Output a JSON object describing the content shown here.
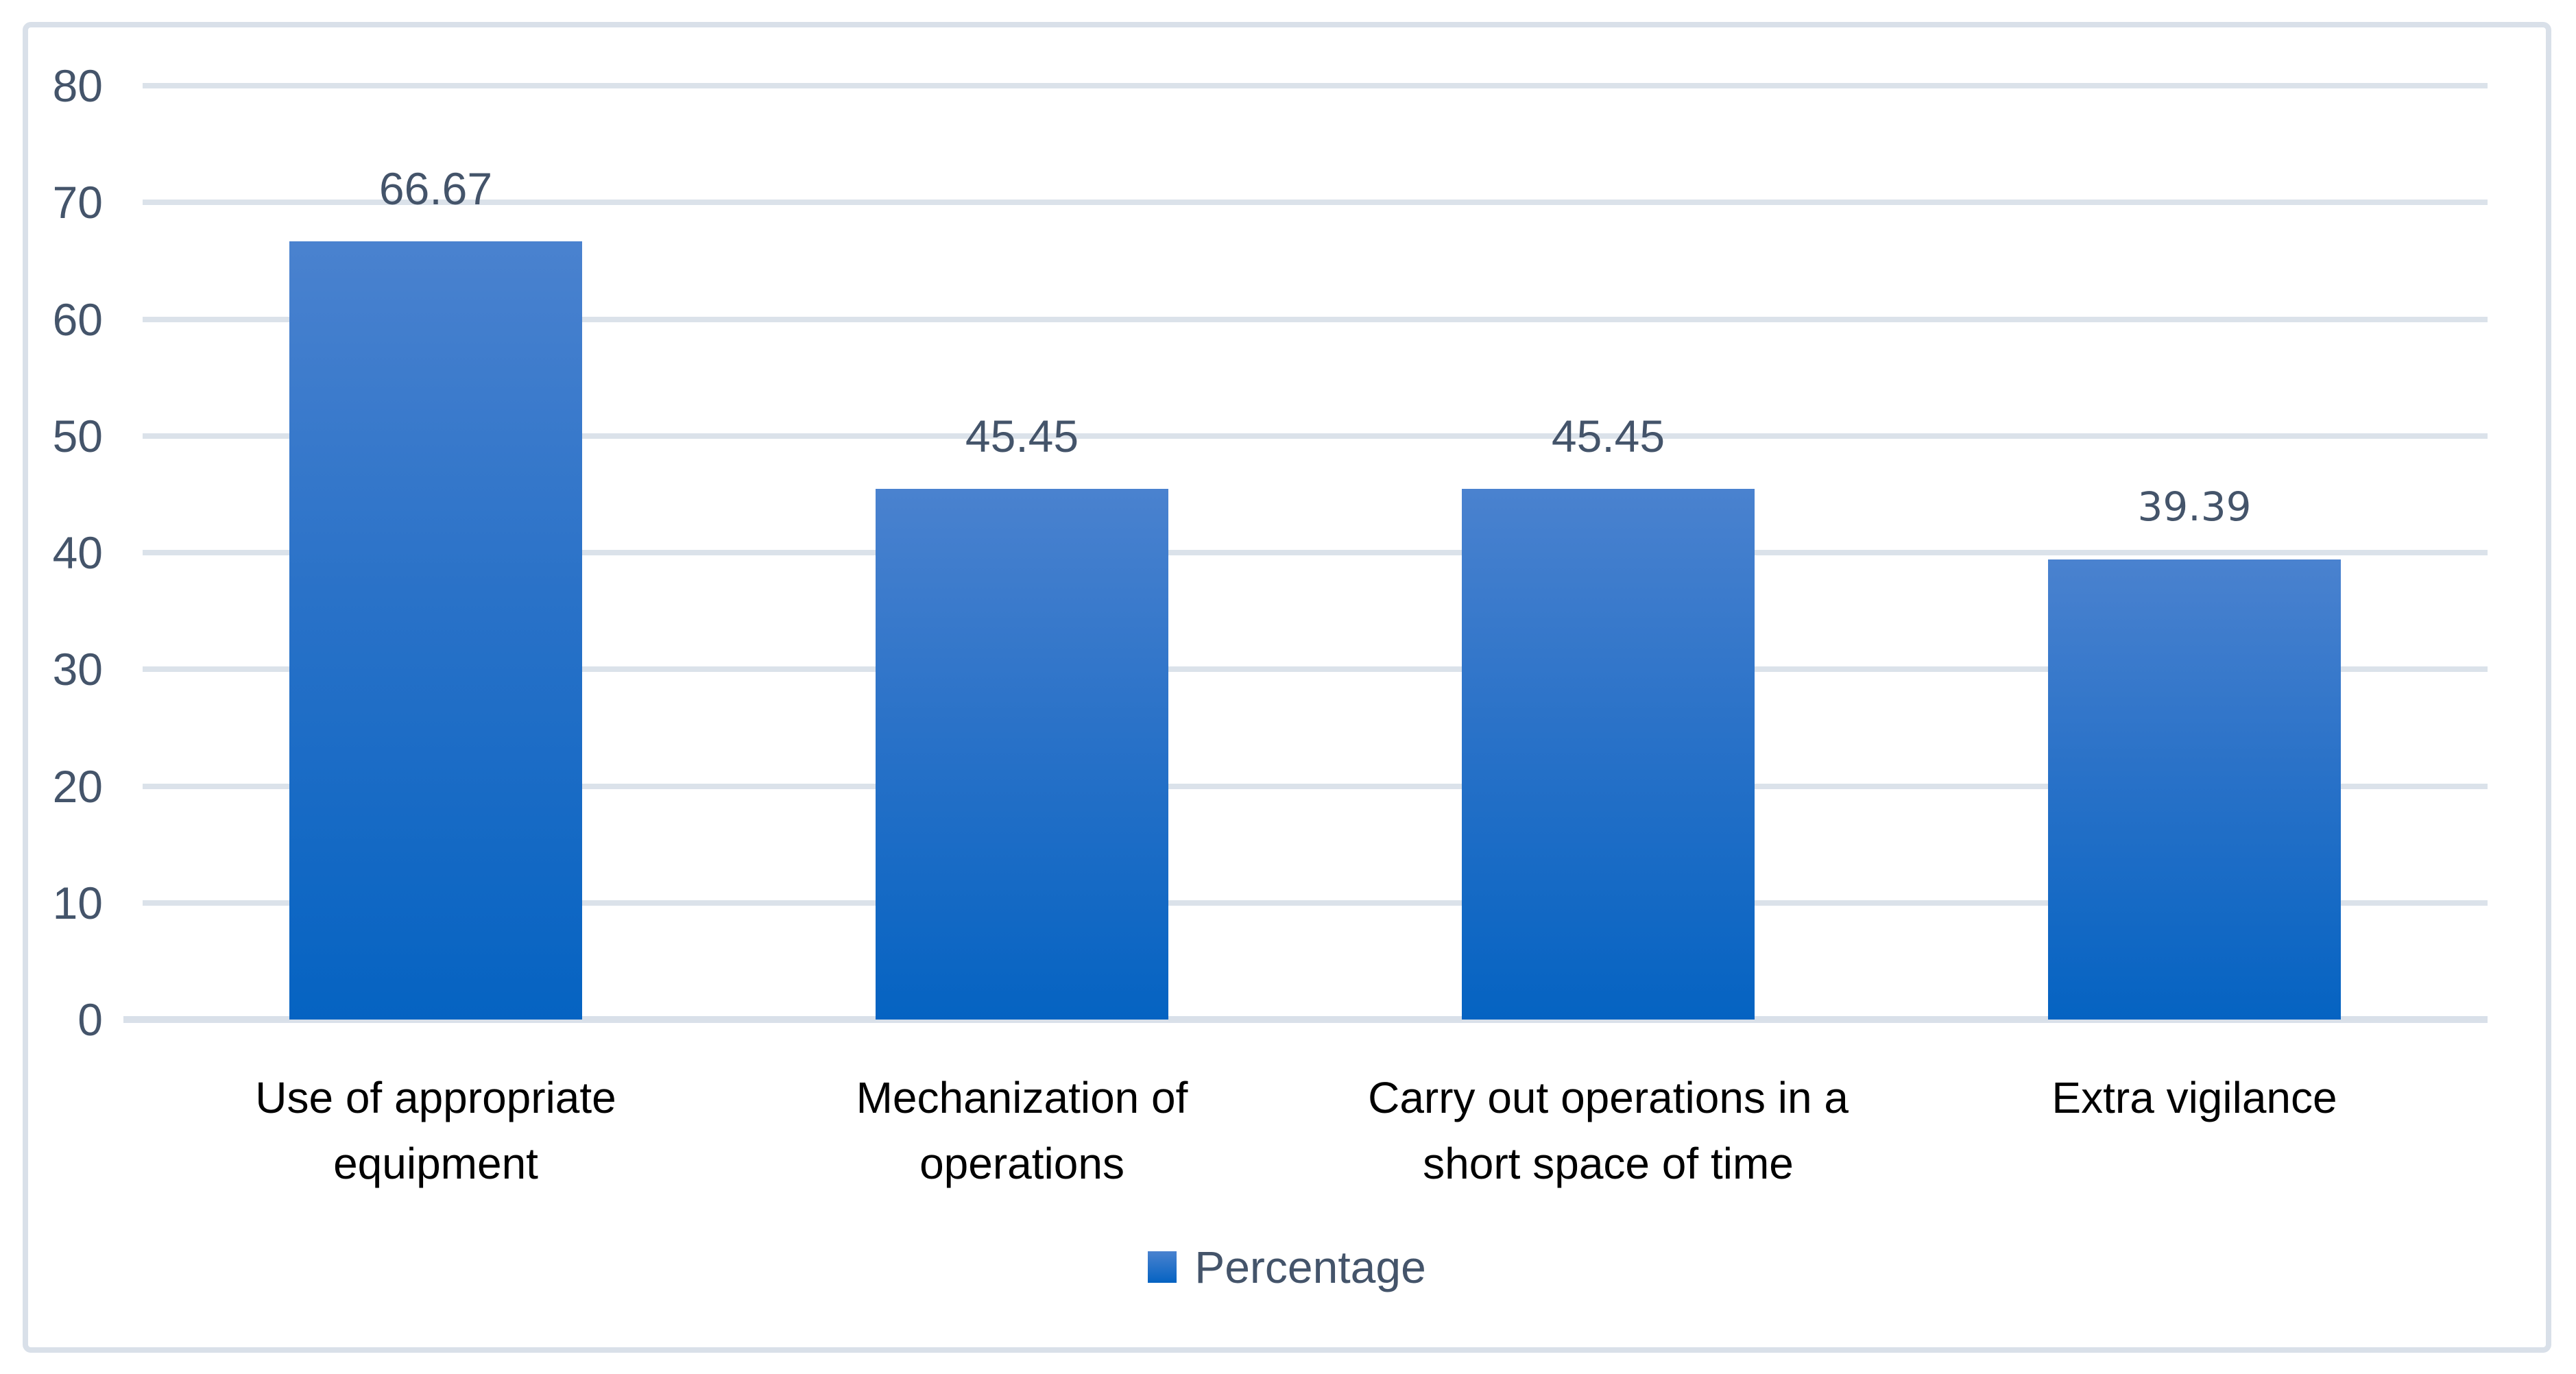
{
  "chart_data": {
    "type": "bar",
    "title": "",
    "categories": [
      "Use of appropriate equipment",
      "Mechanization of operations",
      "Carry out operations in a short space of time",
      "Extra vigilance"
    ],
    "values": [
      66.67,
      45.45,
      45.45,
      39.39
    ],
    "data_labels": [
      "66.67",
      "45.45",
      "45.45",
      "39.39"
    ],
    "series_name": "Percentage",
    "xlabel": "",
    "ylabel": "",
    "ylim": [
      0,
      80
    ],
    "yticks": [
      "0",
      "10",
      "20",
      "30",
      "40",
      "50",
      "60",
      "70",
      "80"
    ],
    "grid": true,
    "legend_position": "bottom-center",
    "colors": {
      "bar_gradient_top": "#4A82CF",
      "bar_gradient_bottom": "#0563C2",
      "axis_text": "#44546A",
      "data_label_text": "#44546A",
      "category_text": "#000000",
      "gridline": "#DBE2EA",
      "frame_border": "#D9E0E9",
      "background": "#FFFFFF"
    }
  }
}
